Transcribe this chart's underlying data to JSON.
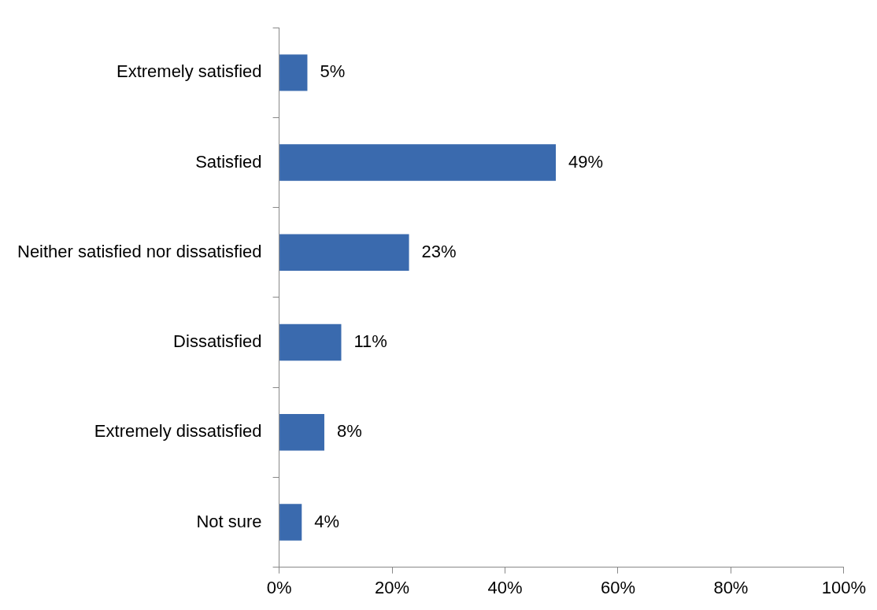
{
  "chart_data": {
    "type": "bar",
    "orientation": "horizontal",
    "categories": [
      "Extremely satisfied",
      "Satisfied",
      "Neither satisfied nor dissatisfied",
      "Dissatisfied",
      "Extremely dissatisfied",
      "Not sure"
    ],
    "values": [
      5,
      49,
      23,
      11,
      8,
      4
    ],
    "value_labels": [
      "5%",
      "49%",
      "23%",
      "11%",
      "8%",
      "4%"
    ],
    "color": "#3a6aae",
    "xlim": [
      0,
      100
    ],
    "xticks": [
      {
        "value": 0,
        "label": "0%"
      },
      {
        "value": 20,
        "label": "20%"
      },
      {
        "value": 40,
        "label": "40%"
      },
      {
        "value": 60,
        "label": "60%"
      },
      {
        "value": 80,
        "label": "80%"
      },
      {
        "value": 100,
        "label": "100%"
      }
    ],
    "grid": false,
    "legend": false
  }
}
